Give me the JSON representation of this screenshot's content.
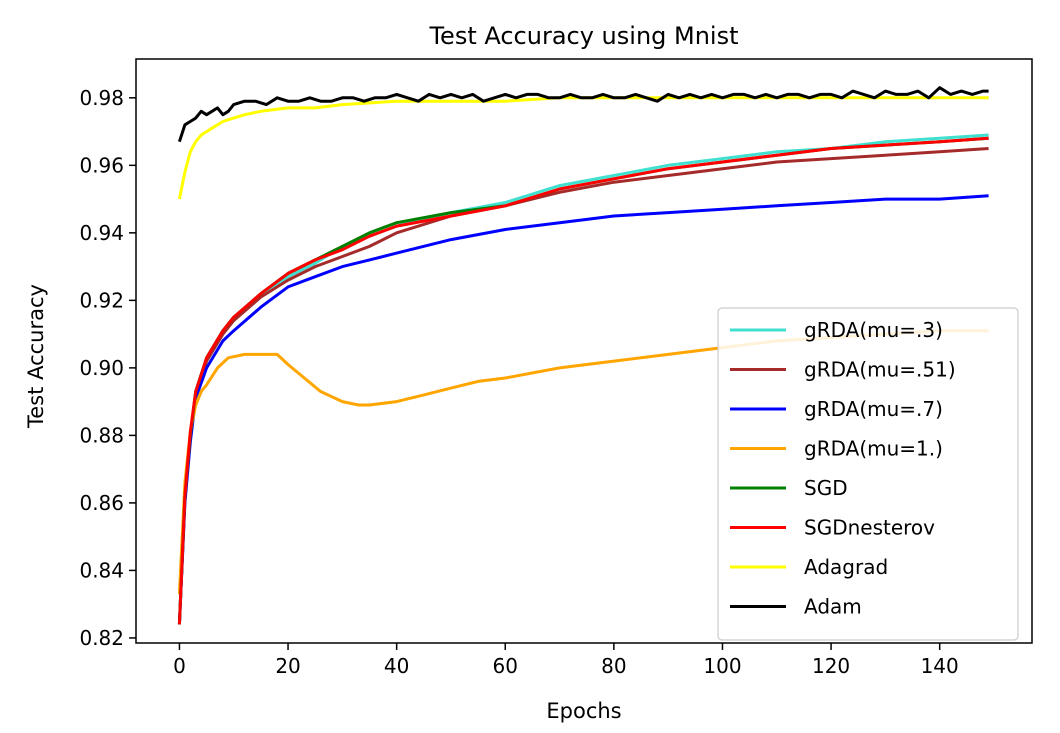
{
  "chart_data": {
    "type": "line",
    "title": "Test Accuracy using Mnist",
    "xlabel": "Epochs",
    "ylabel": "Test Accuracy",
    "xlim": [
      -8,
      157
    ],
    "ylim": [
      0.8185,
      0.9915
    ],
    "xticks": [
      0,
      20,
      40,
      60,
      80,
      100,
      120,
      140
    ],
    "yticks": [
      0.82,
      0.84,
      0.86,
      0.88,
      0.9,
      0.92,
      0.94,
      0.96,
      0.98
    ],
    "xtick_labels": [
      "0",
      "20",
      "40",
      "60",
      "80",
      "100",
      "120",
      "140"
    ],
    "ytick_labels": [
      "0.82",
      "0.84",
      "0.86",
      "0.88",
      "0.90",
      "0.92",
      "0.94",
      "0.96",
      "0.98"
    ],
    "grid": false,
    "legend_position": "lower-right",
    "series": [
      {
        "name": "gRDA(mu=.3)",
        "color": "#40e0d0",
        "x": [
          0,
          1,
          2,
          3,
          5,
          8,
          10,
          15,
          20,
          25,
          30,
          35,
          40,
          50,
          60,
          70,
          80,
          90,
          100,
          110,
          120,
          130,
          140,
          149
        ],
        "y": [
          0.824,
          0.862,
          0.88,
          0.893,
          0.903,
          0.911,
          0.914,
          0.922,
          0.927,
          0.931,
          0.936,
          0.939,
          0.942,
          0.946,
          0.949,
          0.954,
          0.957,
          0.96,
          0.962,
          0.964,
          0.965,
          0.967,
          0.968,
          0.969
        ]
      },
      {
        "name": "gRDA(mu=.51)",
        "color": "#a52a2a",
        "x": [
          0,
          1,
          2,
          3,
          5,
          8,
          10,
          15,
          20,
          25,
          30,
          35,
          40,
          50,
          60,
          70,
          80,
          90,
          100,
          110,
          120,
          130,
          140,
          149
        ],
        "y": [
          0.824,
          0.861,
          0.879,
          0.892,
          0.902,
          0.91,
          0.914,
          0.921,
          0.926,
          0.93,
          0.933,
          0.936,
          0.94,
          0.945,
          0.948,
          0.952,
          0.955,
          0.957,
          0.959,
          0.961,
          0.962,
          0.963,
          0.964,
          0.965
        ]
      },
      {
        "name": "gRDA(mu=.7)",
        "color": "#0000ff",
        "x": [
          0,
          1,
          2,
          3,
          5,
          8,
          10,
          15,
          20,
          25,
          30,
          35,
          40,
          50,
          60,
          70,
          80,
          90,
          100,
          110,
          120,
          130,
          140,
          149
        ],
        "y": [
          0.824,
          0.86,
          0.878,
          0.891,
          0.9,
          0.908,
          0.911,
          0.918,
          0.924,
          0.927,
          0.93,
          0.932,
          0.934,
          0.938,
          0.941,
          0.943,
          0.945,
          0.946,
          0.947,
          0.948,
          0.949,
          0.95,
          0.95,
          0.951
        ]
      },
      {
        "name": "gRDA(mu=1.)",
        "color": "#ffa500",
        "x": [
          0,
          1,
          2,
          3,
          4,
          5,
          7,
          9,
          12,
          15,
          18,
          20,
          23,
          26,
          30,
          33,
          35,
          40,
          45,
          50,
          55,
          60,
          70,
          80,
          90,
          100,
          110,
          120,
          130,
          140,
          149
        ],
        "y": [
          0.833,
          0.866,
          0.881,
          0.889,
          0.893,
          0.895,
          0.9,
          0.903,
          0.904,
          0.904,
          0.904,
          0.901,
          0.897,
          0.893,
          0.89,
          0.889,
          0.889,
          0.89,
          0.892,
          0.894,
          0.896,
          0.897,
          0.9,
          0.902,
          0.904,
          0.906,
          0.908,
          0.909,
          0.91,
          0.911,
          0.911
        ]
      },
      {
        "name": "SGD",
        "color": "#008000",
        "x": [
          0,
          1,
          2,
          3,
          5,
          8,
          10,
          15,
          20,
          25,
          30,
          35,
          40,
          50,
          60,
          70,
          80,
          90,
          100,
          110,
          120,
          130,
          140,
          149
        ],
        "y": [
          0.824,
          0.862,
          0.88,
          0.893,
          0.903,
          0.911,
          0.915,
          0.922,
          0.928,
          0.932,
          0.936,
          0.94,
          0.943,
          0.946,
          0.948,
          0.953,
          0.956,
          0.959,
          0.961,
          0.963,
          0.965,
          0.966,
          0.967,
          0.968
        ]
      },
      {
        "name": "SGDnesterov",
        "color": "#ff0000",
        "x": [
          0,
          1,
          2,
          3,
          5,
          8,
          10,
          15,
          20,
          25,
          30,
          35,
          40,
          50,
          60,
          70,
          80,
          90,
          100,
          110,
          120,
          130,
          140,
          149
        ],
        "y": [
          0.824,
          0.862,
          0.881,
          0.893,
          0.903,
          0.911,
          0.915,
          0.922,
          0.928,
          0.932,
          0.935,
          0.939,
          0.942,
          0.945,
          0.948,
          0.953,
          0.956,
          0.959,
          0.961,
          0.963,
          0.965,
          0.966,
          0.967,
          0.968
        ]
      },
      {
        "name": "Adagrad",
        "color": "#ffff00",
        "x": [
          0,
          1,
          2,
          3,
          4,
          6,
          8,
          10,
          12,
          15,
          20,
          25,
          30,
          40,
          50,
          60,
          70,
          80,
          90,
          100,
          110,
          120,
          130,
          140,
          149
        ],
        "y": [
          0.95,
          0.958,
          0.964,
          0.967,
          0.969,
          0.971,
          0.973,
          0.974,
          0.975,
          0.976,
          0.977,
          0.977,
          0.978,
          0.979,
          0.979,
          0.979,
          0.98,
          0.98,
          0.98,
          0.98,
          0.98,
          0.98,
          0.98,
          0.98,
          0.98
        ]
      },
      {
        "name": "Adam",
        "color": "#000000",
        "x": [
          0,
          1,
          2,
          3,
          4,
          5,
          6,
          7,
          8,
          9,
          10,
          12,
          14,
          16,
          18,
          20,
          22,
          24,
          26,
          28,
          30,
          32,
          34,
          36,
          38,
          40,
          42,
          44,
          46,
          48,
          50,
          52,
          54,
          56,
          58,
          60,
          62,
          64,
          66,
          68,
          70,
          72,
          74,
          76,
          78,
          80,
          82,
          84,
          86,
          88,
          90,
          92,
          94,
          96,
          98,
          100,
          102,
          104,
          106,
          108,
          110,
          112,
          114,
          116,
          118,
          120,
          122,
          124,
          126,
          128,
          130,
          132,
          134,
          136,
          138,
          140,
          142,
          144,
          146,
          148,
          149
        ],
        "y": [
          0.967,
          0.972,
          0.973,
          0.974,
          0.976,
          0.975,
          0.976,
          0.977,
          0.975,
          0.976,
          0.978,
          0.979,
          0.979,
          0.978,
          0.98,
          0.979,
          0.979,
          0.98,
          0.979,
          0.979,
          0.98,
          0.98,
          0.979,
          0.98,
          0.98,
          0.981,
          0.98,
          0.979,
          0.981,
          0.98,
          0.981,
          0.98,
          0.981,
          0.979,
          0.98,
          0.981,
          0.98,
          0.981,
          0.981,
          0.98,
          0.98,
          0.981,
          0.98,
          0.98,
          0.981,
          0.98,
          0.98,
          0.981,
          0.98,
          0.979,
          0.981,
          0.98,
          0.981,
          0.98,
          0.981,
          0.98,
          0.981,
          0.981,
          0.98,
          0.981,
          0.98,
          0.981,
          0.981,
          0.98,
          0.981,
          0.981,
          0.98,
          0.982,
          0.981,
          0.98,
          0.982,
          0.981,
          0.981,
          0.982,
          0.98,
          0.983,
          0.981,
          0.982,
          0.981,
          0.982,
          0.982
        ]
      }
    ]
  }
}
